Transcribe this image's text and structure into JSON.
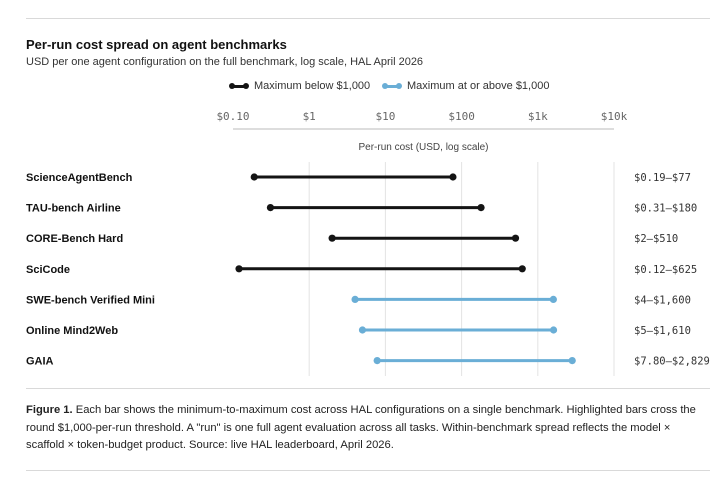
{
  "title": "Per-run cost spread on agent benchmarks",
  "subtitle": "USD per one agent configuration on the full benchmark, log scale, HAL April 2026",
  "legend": [
    {
      "label": "Maximum below $1,000",
      "color": "#141414"
    },
    {
      "label": "Maximum at or above $1,000",
      "color": "#6aaed6"
    }
  ],
  "chart_data": {
    "type": "range",
    "title": "Per-run cost spread on agent benchmarks",
    "xlabel": "Per-run cost (USD, log scale)",
    "xscale": "log",
    "xlim": [
      0.1,
      10000
    ],
    "ticks": [
      {
        "value": 0.1,
        "label": "$0.10"
      },
      {
        "value": 1,
        "label": "$1"
      },
      {
        "value": 10,
        "label": "$10"
      },
      {
        "value": 100,
        "label": "$100"
      },
      {
        "value": 1000,
        "label": "$1k"
      },
      {
        "value": 10000,
        "label": "$10k"
      }
    ],
    "grid": true,
    "rows": [
      {
        "name": "ScienceAgentBench",
        "min": 0.19,
        "max": 77,
        "range_label": "$0.19–$77",
        "group": 0
      },
      {
        "name": "TAU-bench Airline",
        "min": 0.31,
        "max": 180,
        "range_label": "$0.31–$180",
        "group": 0
      },
      {
        "name": "CORE-Bench Hard",
        "min": 2,
        "max": 510,
        "range_label": "$2–$510",
        "group": 0
      },
      {
        "name": "SciCode",
        "min": 0.12,
        "max": 625,
        "range_label": "$0.12–$625",
        "group": 0
      },
      {
        "name": "SWE-bench Verified Mini",
        "min": 4,
        "max": 1600,
        "range_label": "$4–$1,600",
        "group": 1
      },
      {
        "name": "Online Mind2Web",
        "min": 5,
        "max": 1610,
        "range_label": "$5–$1,610",
        "group": 1
      },
      {
        "name": "GAIA",
        "min": 7.8,
        "max": 2829,
        "range_label": "$7.80–$2,829",
        "group": 1
      }
    ]
  },
  "caption": {
    "label": "Figure 1.",
    "text": " Each bar shows the minimum-to-maximum cost across HAL configurations on a single benchmark. Highlighted bars cross the round $1,000-per-run threshold. A \"run\" is one full agent evaluation across all tasks. Within-benchmark spread reflects the model × scaffold × token-budget product. Source: live HAL leaderboard, April 2026."
  }
}
